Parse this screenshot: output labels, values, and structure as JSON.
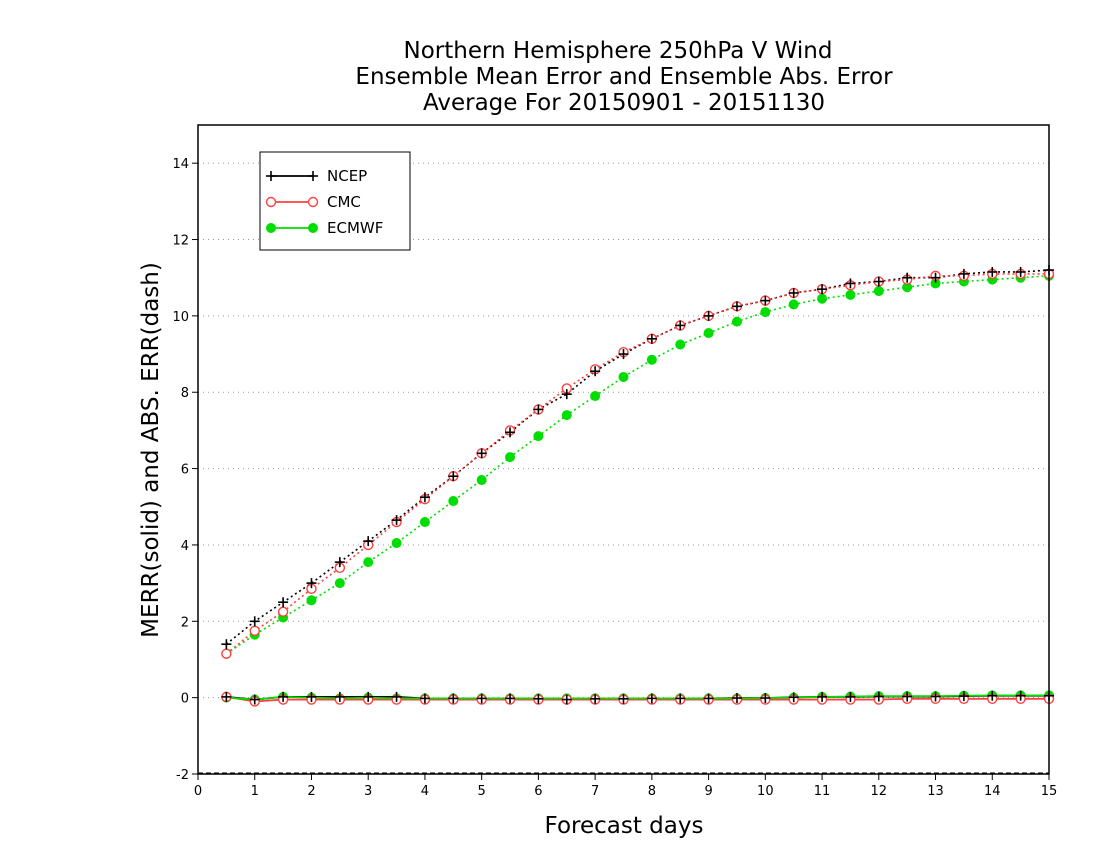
{
  "chart_data": {
    "type": "line",
    "title": [
      "Northern Hemisphere 250hPa V Wind",
      "Ensemble Mean Error and Ensemble Abs. Error",
      "Average For 20150901 - 20151130"
    ],
    "xlabel": "Forecast days",
    "ylabel": "MERR(solid) and ABS. ERR(dash)",
    "xlim": [
      0,
      15
    ],
    "ylim": [
      -2,
      15
    ],
    "x_ticks": [
      0,
      1,
      2,
      3,
      4,
      5,
      6,
      7,
      8,
      9,
      10,
      11,
      12,
      13,
      14,
      15
    ],
    "y_ticks": [
      -2,
      0,
      2,
      4,
      6,
      8,
      10,
      12,
      14
    ],
    "grid": "horizontal dotted",
    "legend_position": "top-left",
    "x": [
      0.5,
      1,
      1.5,
      2,
      2.5,
      3,
      3.5,
      4,
      4.5,
      5,
      5.5,
      6,
      6.5,
      7,
      7.5,
      8,
      8.5,
      9,
      9.5,
      10,
      10.5,
      11,
      11.5,
      12,
      12.5,
      13,
      13.5,
      14,
      14.5,
      15
    ],
    "series": [
      {
        "name": "NCEP",
        "color": "#000000",
        "marker": "plus",
        "mean_error": [
          0.02,
          -0.05,
          0.02,
          0.02,
          0.02,
          0.02,
          0.02,
          -0.02,
          -0.02,
          -0.02,
          -0.02,
          -0.03,
          -0.05,
          -0.03,
          -0.03,
          -0.02,
          -0.02,
          -0.02,
          -0.01,
          -0.01,
          0.01,
          0.02,
          0.02,
          0.03,
          0.03,
          0.03,
          0.04,
          0.05,
          0.05,
          0.05
        ],
        "abs_error": [
          1.4,
          2.0,
          2.5,
          3.0,
          3.55,
          4.1,
          4.65,
          5.25,
          5.8,
          6.4,
          6.95,
          7.55,
          7.95,
          8.55,
          9.0,
          9.4,
          9.75,
          10.0,
          10.25,
          10.4,
          10.6,
          10.7,
          10.85,
          10.9,
          11.0,
          11.0,
          11.1,
          11.15,
          11.15,
          11.2
        ]
      },
      {
        "name": "CMC",
        "color": "#ff4040",
        "marker": "open-circle",
        "mean_error": [
          0.02,
          -0.1,
          -0.05,
          -0.05,
          -0.05,
          -0.05,
          -0.05,
          -0.05,
          -0.05,
          -0.05,
          -0.05,
          -0.05,
          -0.05,
          -0.05,
          -0.05,
          -0.05,
          -0.05,
          -0.05,
          -0.05,
          -0.05,
          -0.05,
          -0.05,
          -0.05,
          -0.05,
          -0.03,
          -0.03,
          -0.03,
          -0.03,
          -0.03,
          -0.03
        ],
        "abs_error": [
          1.15,
          1.75,
          2.25,
          2.85,
          3.4,
          4.0,
          4.6,
          5.2,
          5.8,
          6.4,
          7.0,
          7.55,
          8.1,
          8.6,
          9.05,
          9.4,
          9.75,
          10.0,
          10.25,
          10.4,
          10.6,
          10.7,
          10.8,
          10.9,
          10.95,
          11.05,
          11.05,
          11.1,
          11.1,
          11.1
        ]
      },
      {
        "name": "ECMWF",
        "color": "#00dd00",
        "marker": "filled-circle",
        "mean_error": [
          0.0,
          -0.05,
          0.02,
          0.0,
          -0.02,
          0.0,
          -0.02,
          -0.02,
          -0.02,
          -0.02,
          -0.02,
          -0.02,
          -0.02,
          -0.02,
          -0.02,
          -0.02,
          -0.02,
          -0.02,
          -0.02,
          -0.01,
          0.0,
          0.02,
          0.03,
          0.04,
          0.04,
          0.04,
          0.05,
          0.06,
          0.06,
          0.06
        ],
        "abs_error": [
          1.15,
          1.65,
          2.1,
          2.55,
          3.0,
          3.55,
          4.05,
          4.6,
          5.15,
          5.7,
          6.3,
          6.85,
          7.4,
          7.9,
          8.4,
          8.85,
          9.25,
          9.55,
          9.85,
          10.1,
          10.3,
          10.45,
          10.55,
          10.65,
          10.75,
          10.85,
          10.9,
          10.95,
          11.0,
          11.05
        ]
      }
    ]
  }
}
